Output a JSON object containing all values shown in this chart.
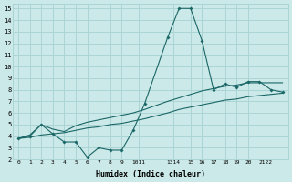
{
  "xlabel": "Humidex (Indice chaleur)",
  "xlim": [
    -0.5,
    23.5
  ],
  "ylim": [
    2,
    15.4
  ],
  "yticks": [
    2,
    3,
    4,
    5,
    6,
    7,
    8,
    9,
    10,
    11,
    12,
    13,
    14,
    15
  ],
  "bg_color": "#cce9e9",
  "grid_color": "#aad4d4",
  "line_color": "#1a6666",
  "line1_x": [
    0,
    1,
    2,
    3,
    4,
    5,
    6,
    7,
    8,
    9,
    10,
    11,
    13,
    14,
    15,
    16,
    17,
    18,
    19,
    20,
    21,
    22,
    23
  ],
  "line1_y": [
    3.8,
    4.0,
    5.0,
    4.2,
    3.5,
    3.5,
    2.2,
    3.0,
    2.8,
    2.8,
    4.5,
    6.8,
    12.5,
    15.0,
    15.0,
    12.2,
    8.0,
    8.5,
    8.2,
    8.7,
    8.7,
    8.0,
    7.8
  ],
  "line2_x": [
    0,
    1,
    2,
    3,
    4,
    5,
    6,
    7,
    8,
    9,
    10,
    11,
    13,
    14,
    15,
    16,
    17,
    18,
    19,
    20,
    21,
    22,
    23
  ],
  "line2_y": [
    3.8,
    4.1,
    5.0,
    4.6,
    4.4,
    4.9,
    5.2,
    5.4,
    5.6,
    5.8,
    6.0,
    6.3,
    7.0,
    7.3,
    7.6,
    7.9,
    8.1,
    8.3,
    8.4,
    8.6,
    8.6,
    8.6,
    8.6
  ],
  "line3_x": [
    0,
    1,
    2,
    3,
    4,
    5,
    6,
    7,
    8,
    9,
    10,
    11,
    13,
    14,
    15,
    16,
    17,
    18,
    19,
    20,
    21,
    22,
    23
  ],
  "line3_y": [
    3.8,
    3.9,
    4.1,
    4.2,
    4.3,
    4.5,
    4.7,
    4.8,
    5.0,
    5.1,
    5.3,
    5.5,
    6.0,
    6.3,
    6.5,
    6.7,
    6.9,
    7.1,
    7.2,
    7.4,
    7.5,
    7.6,
    7.7
  ],
  "xtick_positions": [
    0,
    1,
    2,
    3,
    4,
    5,
    6,
    7,
    8,
    9,
    10.5,
    13.5,
    15,
    16,
    17,
    18,
    19,
    20,
    21.5
  ],
  "xtick_labels": [
    "0",
    "1",
    "2",
    "3",
    "4",
    "5",
    "6",
    "7",
    "8",
    "9",
    "1011",
    "1314",
    "15",
    "16",
    "17",
    "18",
    "19",
    "20",
    "2122"
  ]
}
